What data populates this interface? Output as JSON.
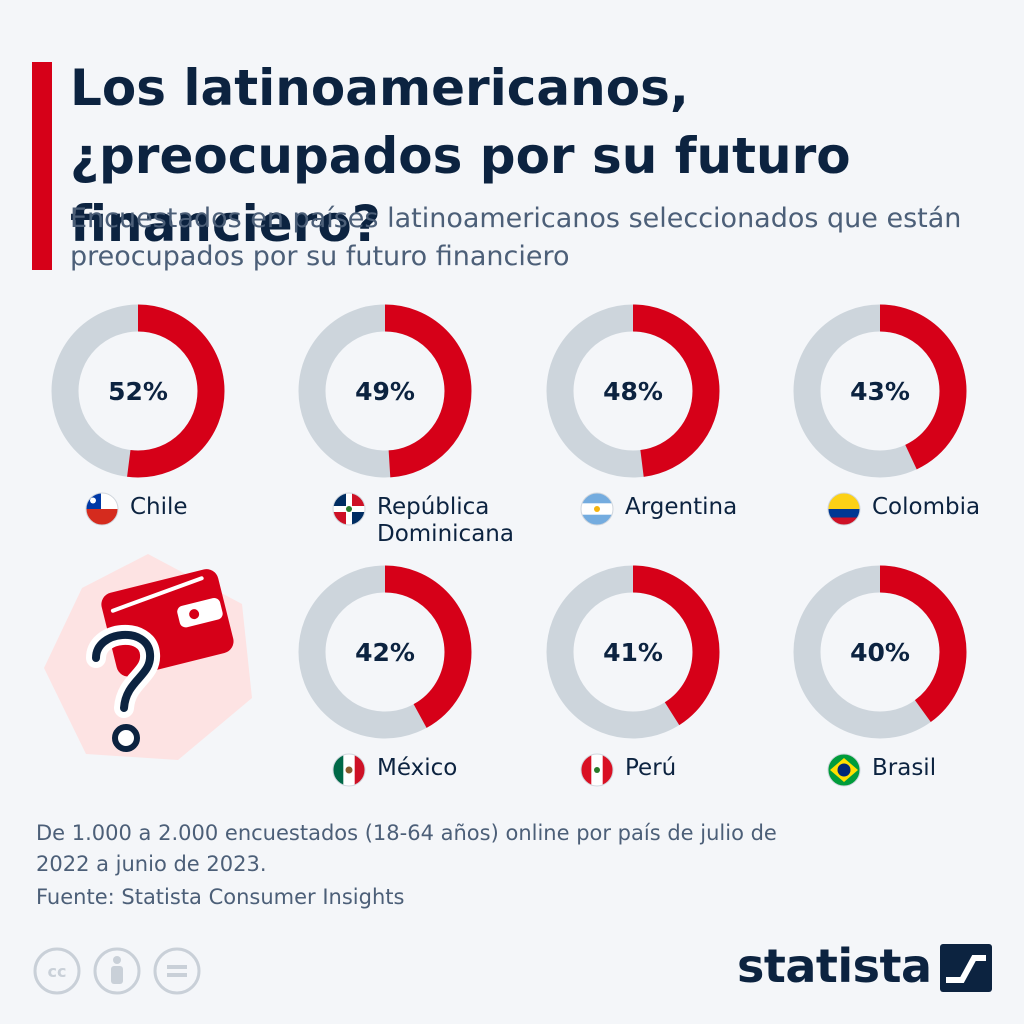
{
  "header": {
    "title": "Los latinoamericanos, ¿preocupados por su futuro financiero?",
    "subtitle": "Encuestados en países latinoamericanos seleccionados que están preocupados por su futuro financiero"
  },
  "chart_data": {
    "type": "pie",
    "categories": [
      "Chile",
      "República Dominicana",
      "Argentina",
      "Colombia",
      "México",
      "Perú",
      "Brasil"
    ],
    "values": [
      52,
      49,
      48,
      43,
      42,
      41,
      40
    ],
    "value_labels": [
      "52%",
      "49%",
      "48%",
      "43%",
      "42%",
      "41%",
      "40%"
    ],
    "unit": "%",
    "colors": {
      "filled": "#d60018",
      "remainder": "#cdd5dc"
    }
  },
  "footer": {
    "note": "De 1.000 a 2.000 encuestados (18-64 años) online por país de julio de 2022 a junio de 2023.",
    "source": "Fuente: Statista Consumer Insights",
    "brand": "statista",
    "license_icons": [
      "cc-icon",
      "attribution-icon",
      "no-derivatives-icon"
    ]
  }
}
